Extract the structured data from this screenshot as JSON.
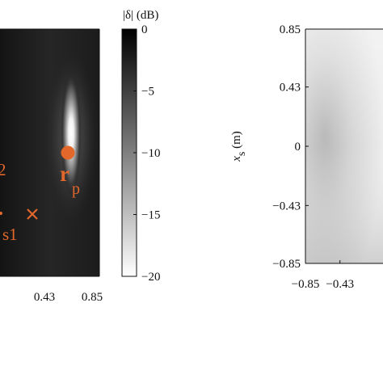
{
  "colors": {
    "marker": "#e2672b",
    "axis": "#111111"
  },
  "chart_data": [
    {
      "type": "heatmap",
      "panel": "left",
      "colormap": "gray",
      "xticks": [
        "0.43",
        "0.85"
      ],
      "hotspot": {
        "x": 0.6,
        "y": 0.0
      },
      "markers": [
        {
          "kind": "dot",
          "label": "r",
          "subscript": "p",
          "x": 0.6,
          "y": 0.0
        },
        {
          "kind": "cross",
          "label": "s1",
          "x": 0.28,
          "y": -0.55
        },
        {
          "kind": "dot",
          "label": "2",
          "x": -0.02,
          "y": -0.55
        }
      ]
    },
    {
      "type": "colorbar",
      "label_prefix": "|δ|",
      "label_unit": "(dB)",
      "ylim": [
        -20,
        0
      ],
      "ticks": [
        0,
        -5,
        -10,
        -15,
        -20
      ],
      "tick_labels": [
        "0",
        "−5",
        "−10",
        "−15",
        "−20"
      ]
    },
    {
      "type": "heatmap",
      "panel": "right",
      "colormap": "gray",
      "ylabel_symbol": "x",
      "ylabel_subscript": "s",
      "ylabel_unit": "(m)",
      "xlim": [
        -0.85,
        0.85
      ],
      "ylim": [
        -0.85,
        0.85
      ],
      "yticks": [
        0.85,
        0.43,
        0,
        -0.43,
        -0.85
      ],
      "ytick_labels": [
        "0.85",
        "0.43",
        "0",
        "−0.43",
        "−0.85"
      ],
      "xticks": [
        -0.85,
        -0.43
      ],
      "xtick_labels": [
        "−0.85",
        "−0.43"
      ]
    }
  ]
}
